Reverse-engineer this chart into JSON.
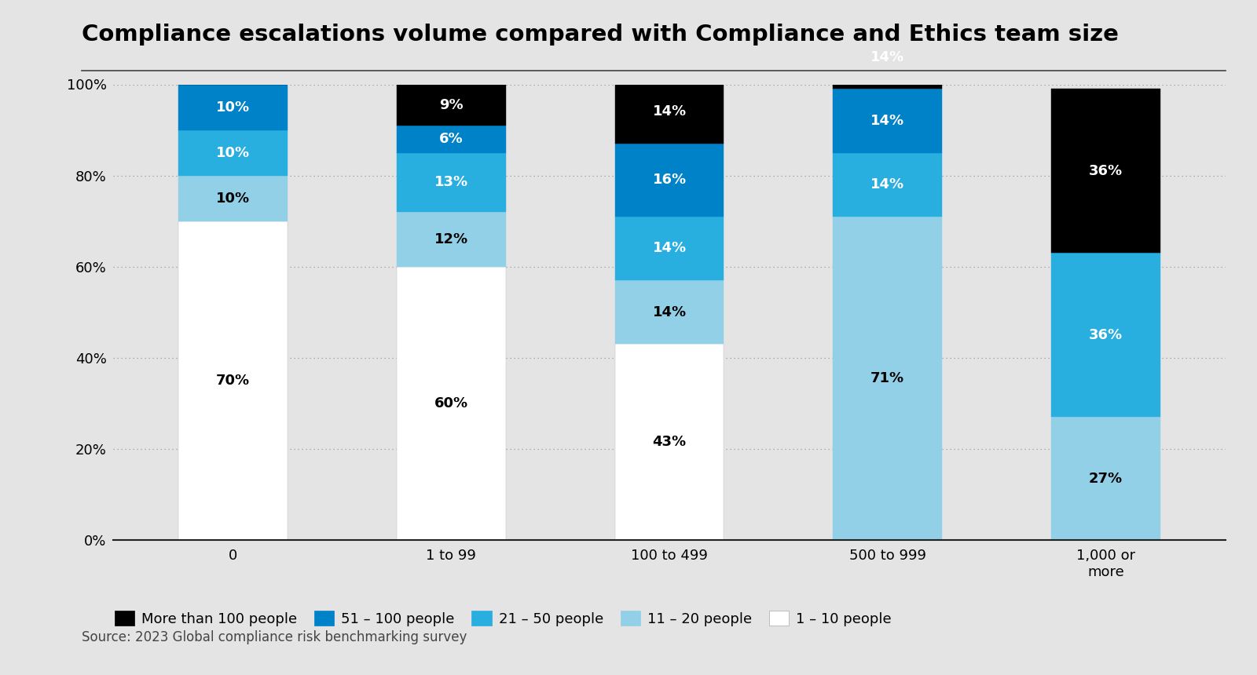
{
  "title": "Compliance escalations volume compared with Compliance and Ethics team size",
  "categories": [
    "0",
    "1 to 99",
    "100 to 499",
    "500 to 999",
    "1,000 or\nmore"
  ],
  "series": [
    {
      "label": "1 – 10 people",
      "color": "#ffffff",
      "values": [
        70,
        60,
        43,
        0,
        0
      ]
    },
    {
      "label": "11 – 20 people",
      "color": "#92d0e8",
      "values": [
        10,
        12,
        14,
        71,
        27
      ]
    },
    {
      "label": "21 – 50 people",
      "color": "#29aee0",
      "values": [
        10,
        13,
        14,
        14,
        36
      ]
    },
    {
      "label": "51 – 100 people",
      "color": "#0082c8",
      "values": [
        10,
        6,
        16,
        14,
        0
      ]
    },
    {
      "label": "More than 100 people",
      "color": "#000000",
      "values": [
        0,
        9,
        14,
        14,
        36
      ]
    }
  ],
  "source_text": "Source: 2023 Global compliance risk benchmarking survey",
  "background_color": "#e4e4e4",
  "plot_background_color": "#e4e4e4",
  "title_fontsize": 21,
  "label_fontsize": 13,
  "tick_fontsize": 13,
  "legend_fontsize": 13,
  "source_fontsize": 12,
  "ylim": [
    0,
    100
  ],
  "yticks": [
    0,
    20,
    40,
    60,
    80,
    100
  ],
  "ytick_labels": [
    "0%",
    "20%",
    "40%",
    "60%",
    "80%",
    "100%"
  ]
}
